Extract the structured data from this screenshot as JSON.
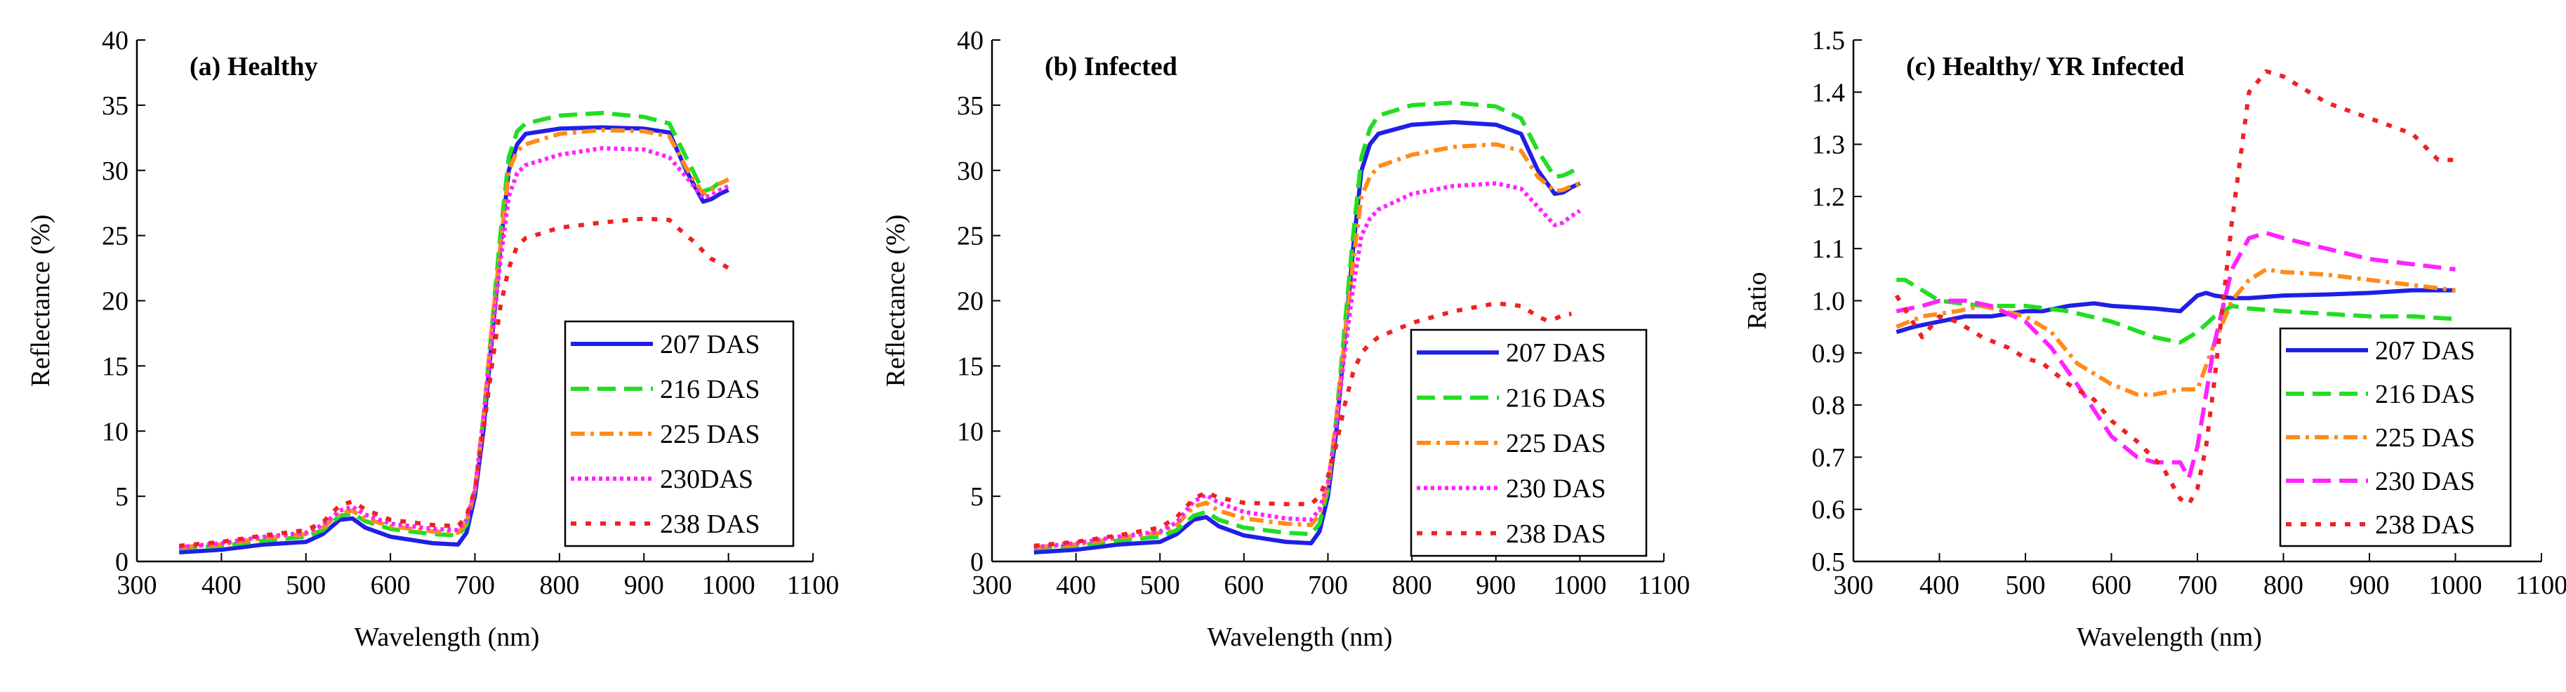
{
  "chart_data": [
    {
      "type": "line",
      "title": "(a) Healthy",
      "xlabel": "Wavelength (nm)",
      "ylabel": "Reflectance (%)",
      "xlim": [
        300,
        1100
      ],
      "ylim": [
        0,
        40
      ],
      "xticks": [
        "300",
        "400",
        "500",
        "600",
        "700",
        "800",
        "900",
        "1000",
        "1100"
      ],
      "yticks": [
        "0",
        "5",
        "10",
        "15",
        "20",
        "25",
        "30",
        "35",
        "40"
      ],
      "legend_position": "bottom-right",
      "series": [
        {
          "name": "207 DAS",
          "color": "#1f1fe6",
          "style": "solid",
          "x": [
            350,
            400,
            450,
            500,
            520,
            540,
            555,
            570,
            600,
            650,
            680,
            690,
            700,
            710,
            720,
            730,
            740,
            750,
            760,
            800,
            850,
            900,
            930,
            950,
            970,
            980,
            990,
            1000
          ],
          "y": [
            0.7,
            0.9,
            1.3,
            1.5,
            2.1,
            3.2,
            3.3,
            2.6,
            1.9,
            1.4,
            1.3,
            2.2,
            5,
            10,
            17,
            24,
            30,
            32,
            32.8,
            33.2,
            33.3,
            33.2,
            32.9,
            30,
            27.6,
            27.8,
            28.2,
            28.5
          ]
        },
        {
          "name": "216 DAS",
          "color": "#22dd22",
          "style": "dashed",
          "x": [
            350,
            400,
            450,
            500,
            520,
            540,
            555,
            570,
            600,
            650,
            680,
            690,
            700,
            710,
            720,
            730,
            740,
            750,
            760,
            800,
            850,
            900,
            930,
            950,
            970,
            980,
            990,
            1000
          ],
          "y": [
            1.0,
            1.2,
            1.6,
            1.9,
            2.4,
            3.5,
            3.7,
            3.1,
            2.5,
            2.1,
            2.0,
            2.8,
            5.5,
            11,
            18,
            25,
            31,
            33,
            33.6,
            34.2,
            34.4,
            34.1,
            33.6,
            31,
            28.4,
            28.6,
            29.1,
            29.3
          ]
        },
        {
          "name": "225 DAS",
          "color": "#ff8c1a",
          "style": "dashdot",
          "x": [
            350,
            400,
            450,
            500,
            520,
            540,
            555,
            570,
            600,
            650,
            680,
            690,
            700,
            710,
            720,
            730,
            740,
            750,
            760,
            800,
            850,
            900,
            930,
            950,
            970,
            980,
            990,
            1000
          ],
          "y": [
            1.1,
            1.3,
            1.8,
            2.1,
            2.6,
            3.7,
            3.9,
            3.3,
            2.7,
            2.3,
            2.2,
            3.0,
            5.5,
            11,
            18,
            24,
            30,
            31.5,
            32,
            32.8,
            33.1,
            33,
            32.6,
            30.2,
            28.2,
            28.5,
            29,
            29.3
          ]
        },
        {
          "name": "230DAS",
          "color": "#ff22ff",
          "style": "dotted",
          "x": [
            350,
            400,
            450,
            500,
            520,
            540,
            555,
            570,
            600,
            650,
            680,
            690,
            700,
            710,
            720,
            730,
            740,
            750,
            760,
            800,
            850,
            900,
            930,
            950,
            970,
            980,
            990,
            1000
          ],
          "y": [
            1.1,
            1.4,
            1.9,
            2.2,
            2.8,
            3.9,
            4.2,
            3.6,
            2.9,
            2.5,
            2.4,
            3.2,
            5.5,
            11,
            17,
            23,
            28,
            29.8,
            30.4,
            31.2,
            31.7,
            31.6,
            31,
            29.5,
            27.9,
            28.1,
            28.5,
            28.8
          ]
        },
        {
          "name": "238 DAS",
          "color": "#ee2222",
          "style": "dotted-coarse",
          "x": [
            350,
            400,
            450,
            500,
            520,
            540,
            555,
            570,
            600,
            650,
            680,
            690,
            700,
            710,
            720,
            730,
            740,
            750,
            760,
            800,
            850,
            900,
            930,
            950,
            960,
            970,
            980,
            990,
            1000
          ],
          "y": [
            1.2,
            1.5,
            2.0,
            2.4,
            3.0,
            4.3,
            4.6,
            4.0,
            3.2,
            2.8,
            2.7,
            3.5,
            5.5,
            10,
            15,
            19.5,
            22.5,
            24.2,
            24.8,
            25.6,
            26,
            26.3,
            26.2,
            25,
            24.5,
            23.8,
            23.2,
            22.9,
            22.5
          ]
        }
      ]
    },
    {
      "type": "line",
      "title": "(b) Infected",
      "xlabel": "Wavelength (nm)",
      "ylabel": "Reflectance (%)",
      "xlim": [
        300,
        1100
      ],
      "ylim": [
        0,
        40
      ],
      "xticks": [
        "300",
        "400",
        "500",
        "600",
        "700",
        "800",
        "900",
        "1000",
        "1100"
      ],
      "yticks": [
        "0",
        "5",
        "10",
        "15",
        "20",
        "25",
        "30",
        "35",
        "40"
      ],
      "legend_position": "bottom-right",
      "series": [
        {
          "name": "207 DAS",
          "color": "#1f1fe6",
          "style": "solid",
          "x": [
            350,
            400,
            450,
            500,
            520,
            540,
            555,
            570,
            600,
            650,
            680,
            690,
            700,
            710,
            720,
            730,
            740,
            750,
            760,
            800,
            850,
            900,
            930,
            950,
            970,
            980,
            990,
            1000
          ],
          "y": [
            0.7,
            0.9,
            1.3,
            1.5,
            2.1,
            3.2,
            3.4,
            2.7,
            2.0,
            1.5,
            1.4,
            2.3,
            5,
            10,
            17,
            24,
            30,
            32,
            32.8,
            33.5,
            33.7,
            33.5,
            32.8,
            30,
            28.2,
            28.3,
            28.7,
            29
          ]
        },
        {
          "name": "216 DAS",
          "color": "#22dd22",
          "style": "dashed",
          "x": [
            350,
            400,
            450,
            500,
            520,
            540,
            555,
            570,
            600,
            650,
            680,
            690,
            700,
            710,
            720,
            730,
            740,
            750,
            760,
            800,
            850,
            900,
            930,
            950,
            970,
            980,
            990,
            1000
          ],
          "y": [
            1.0,
            1.2,
            1.6,
            1.9,
            2.4,
            3.5,
            3.8,
            3.2,
            2.6,
            2.2,
            2.1,
            2.9,
            5.5,
            11,
            18,
            25,
            31,
            33.2,
            34.2,
            35,
            35.2,
            34.9,
            34,
            31.5,
            29.5,
            29.6,
            29.9,
            30.2
          ]
        },
        {
          "name": "225 DAS",
          "color": "#ff8c1a",
          "style": "dashdot",
          "x": [
            350,
            400,
            450,
            500,
            520,
            540,
            555,
            570,
            600,
            650,
            680,
            690,
            700,
            710,
            720,
            730,
            740,
            750,
            760,
            800,
            850,
            900,
            930,
            950,
            970,
            980,
            990,
            1000
          ],
          "y": [
            1.1,
            1.3,
            1.8,
            2.2,
            2.8,
            4.2,
            4.5,
            3.9,
            3.3,
            2.9,
            2.8,
            3.6,
            5.8,
            11,
            17,
            23,
            28,
            29.5,
            30.3,
            31.2,
            31.8,
            32,
            31.5,
            29.5,
            28.4,
            28.5,
            28.8,
            29
          ]
        },
        {
          "name": "230 DAS",
          "color": "#ff22ff",
          "style": "dotted",
          "x": [
            350,
            400,
            450,
            500,
            520,
            540,
            555,
            570,
            600,
            650,
            680,
            690,
            700,
            710,
            720,
            730,
            740,
            750,
            760,
            800,
            850,
            900,
            930,
            950,
            970,
            980,
            990,
            1000
          ],
          "y": [
            1.1,
            1.4,
            1.9,
            2.3,
            3.0,
            4.6,
            5.1,
            4.5,
            3.8,
            3.3,
            3.2,
            4.0,
            6,
            10.5,
            16,
            21,
            25,
            26.3,
            27,
            28.2,
            28.8,
            29,
            28.6,
            27.2,
            25.8,
            26,
            26.5,
            26.9
          ]
        },
        {
          "name": "238 DAS",
          "color": "#ee2222",
          "style": "dotted-coarse",
          "x": [
            350,
            400,
            450,
            500,
            520,
            540,
            555,
            570,
            600,
            650,
            680,
            690,
            700,
            710,
            720,
            730,
            740,
            750,
            760,
            800,
            850,
            900,
            930,
            950,
            960,
            970,
            980,
            990
          ],
          "y": [
            1.2,
            1.5,
            2.0,
            2.6,
            3.4,
            4.8,
            5.3,
            4.9,
            4.5,
            4.4,
            4.4,
            5,
            6.5,
            9,
            12,
            14.5,
            16,
            16.7,
            17.2,
            18.3,
            19.2,
            19.8,
            19.6,
            18.8,
            18.5,
            18.6,
            18.9,
            19
          ]
        }
      ]
    },
    {
      "type": "line",
      "title": "(c) Healthy/ YR Infected",
      "xlabel": "Wavelength (nm)",
      "ylabel": "Ratio",
      "xlim": [
        300,
        1100
      ],
      "ylim": [
        0.5,
        1.5
      ],
      "xticks": [
        "300",
        "400",
        "500",
        "600",
        "700",
        "800",
        "900",
        "1000",
        "1100"
      ],
      "yticks": [
        "0.5",
        "0.6",
        "0.7",
        "0.8",
        "0.9",
        "1.0",
        "1.1",
        "1.2",
        "1.3",
        "1.4",
        "1.5"
      ],
      "legend_position": "bottom-right",
      "series": [
        {
          "name": "207 DAS",
          "color": "#1f1fe6",
          "style": "solid",
          "x": [
            350,
            370,
            400,
            430,
            460,
            500,
            520,
            550,
            580,
            600,
            650,
            680,
            700,
            710,
            720,
            740,
            760,
            800,
            850,
            900,
            950,
            1000
          ],
          "y": [
            0.94,
            0.95,
            0.96,
            0.97,
            0.97,
            0.98,
            0.98,
            0.99,
            0.995,
            0.99,
            0.985,
            0.98,
            1.01,
            1.015,
            1.01,
            1.005,
            1.005,
            1.01,
            1.012,
            1.015,
            1.02,
            1.02
          ]
        },
        {
          "name": "216 DAS",
          "color": "#22dd22",
          "style": "dashed",
          "x": [
            350,
            360,
            380,
            400,
            450,
            500,
            550,
            600,
            650,
            680,
            700,
            720,
            740,
            760,
            800,
            850,
            900,
            950,
            1000
          ],
          "y": [
            1.04,
            1.04,
            1.02,
            1.0,
            0.99,
            0.99,
            0.98,
            0.96,
            0.93,
            0.92,
            0.94,
            0.97,
            0.99,
            0.985,
            0.98,
            0.975,
            0.97,
            0.97,
            0.965
          ]
        },
        {
          "name": "225 DAS",
          "color": "#ff8c1a",
          "style": "dashdot",
          "x": [
            350,
            380,
            420,
            450,
            500,
            530,
            560,
            600,
            630,
            650,
            680,
            700,
            720,
            740,
            760,
            780,
            800,
            850,
            900,
            950,
            1000
          ],
          "y": [
            0.95,
            0.97,
            0.98,
            0.99,
            0.97,
            0.94,
            0.88,
            0.84,
            0.82,
            0.82,
            0.83,
            0.83,
            0.92,
            1.0,
            1.04,
            1.06,
            1.055,
            1.05,
            1.04,
            1.03,
            1.02
          ]
        },
        {
          "name": "230 DAS",
          "color": "#ff22ff",
          "style": "dashed",
          "x": [
            350,
            380,
            400,
            430,
            460,
            500,
            530,
            560,
            600,
            630,
            650,
            680,
            690,
            700,
            710,
            720,
            740,
            760,
            780,
            800,
            850,
            900,
            950,
            1000
          ],
          "y": [
            0.98,
            0.99,
            1.0,
            1.0,
            0.99,
            0.96,
            0.91,
            0.84,
            0.74,
            0.7,
            0.69,
            0.69,
            0.66,
            0.72,
            0.82,
            0.92,
            1.06,
            1.12,
            1.13,
            1.12,
            1.1,
            1.08,
            1.07,
            1.06
          ]
        },
        {
          "name": "238 DAS",
          "color": "#ee2222",
          "style": "dotted-coarse",
          "x": [
            350,
            380,
            400,
            420,
            450,
            480,
            500,
            520,
            550,
            580,
            600,
            630,
            660,
            680,
            690,
            700,
            710,
            720,
            740,
            760,
            780,
            800,
            850,
            900,
            950,
            980,
            1000
          ],
          "y": [
            1.01,
            0.93,
            0.97,
            0.96,
            0.93,
            0.91,
            0.89,
            0.88,
            0.84,
            0.81,
            0.77,
            0.73,
            0.68,
            0.62,
            0.61,
            0.64,
            0.72,
            0.85,
            1.15,
            1.4,
            1.44,
            1.43,
            1.38,
            1.35,
            1.32,
            1.27,
            1.27
          ]
        }
      ]
    }
  ]
}
